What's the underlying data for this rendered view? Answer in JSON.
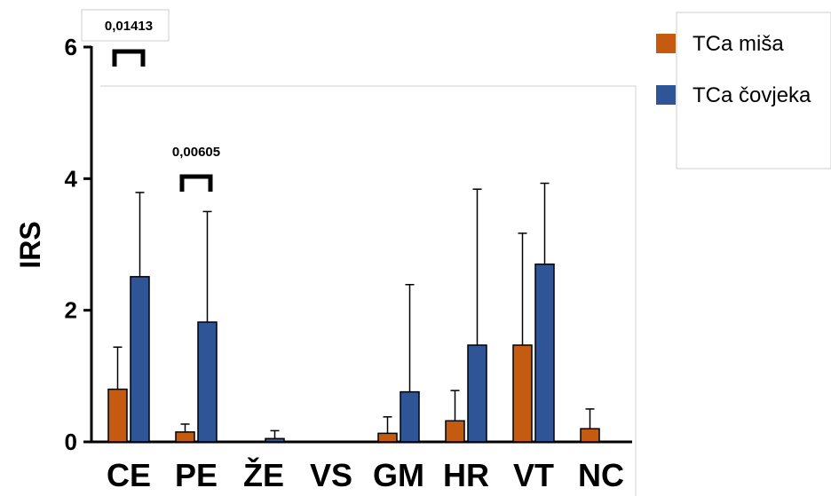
{
  "chart_data": {
    "type": "bar",
    "ylabel": "IRS",
    "ylim": [
      0,
      6
    ],
    "yticks": [
      "0",
      "2",
      "4",
      "6"
    ],
    "categories": [
      "CE",
      "PE",
      "ŽE",
      "VS",
      "GM",
      "HR",
      "VT",
      "NC"
    ],
    "series": [
      {
        "name": "TCa miša",
        "color": "#C55A11",
        "values": [
          0.8,
          0.15,
          0,
          0,
          0.13,
          0.32,
          1.47,
          0.2
        ],
        "error_upper": [
          1.44,
          0.27,
          0,
          0,
          0.38,
          0.78,
          3.17,
          0.5
        ]
      },
      {
        "name": "TCa čovjeka",
        "color": "#2F5597",
        "values": [
          2.51,
          1.82,
          0.05,
          0,
          0.76,
          1.47,
          2.7,
          null
        ],
        "error_upper": [
          3.79,
          3.5,
          0.17,
          0,
          2.39,
          3.84,
          3.93,
          null
        ]
      }
    ],
    "annotations": [
      {
        "category": "CE",
        "text": "0,01413"
      },
      {
        "category": "PE",
        "text": "0,00605"
      }
    ],
    "legend_position": "top-right",
    "grid": false
  }
}
